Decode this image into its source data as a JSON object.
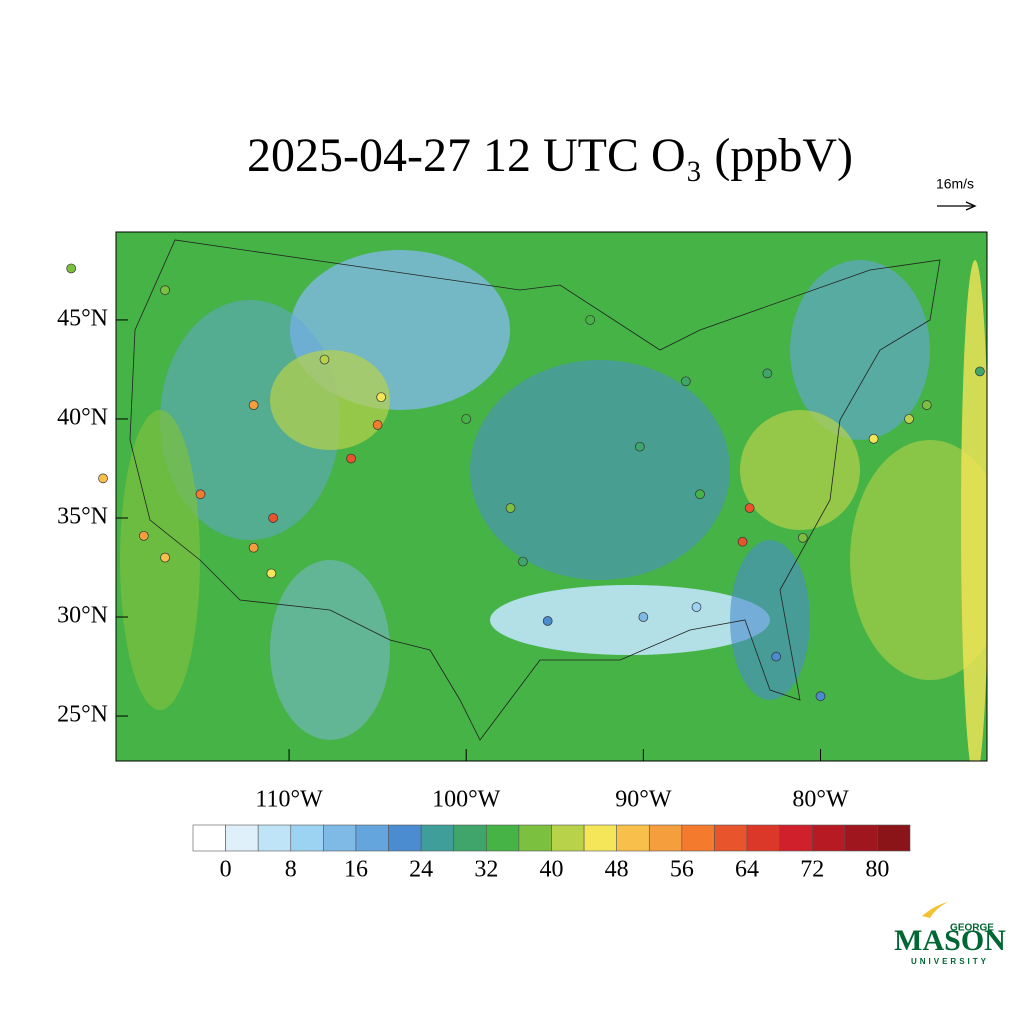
{
  "chart_data": {
    "type": "map",
    "title": "2025-04-27 12 UTC O₃ (ppbV)",
    "vector_key_label": "16m/s",
    "xlim": [
      -119.77,
      -70.6
    ],
    "ylim": [
      22.73,
      49.44
    ],
    "xticks": [
      {
        "value": -110,
        "label": "110°W"
      },
      {
        "value": -100,
        "label": "100°W"
      },
      {
        "value": -90,
        "label": "90°W"
      },
      {
        "value": -80,
        "label": "80°W"
      }
    ],
    "yticks": [
      {
        "value": 45,
        "label": "45°N"
      },
      {
        "value": 40,
        "label": "40°N"
      },
      {
        "value": 35,
        "label": "35°N"
      },
      {
        "value": 30,
        "label": "30°N"
      },
      {
        "value": 25,
        "label": "25°N"
      }
    ],
    "stations": {
      "lon": [
        -122.3,
        -117,
        -112,
        -105,
        -106.5,
        -118.2,
        -117,
        -115,
        -112,
        -111,
        -110.9,
        -120.5,
        -96.8,
        -95.4,
        -90,
        -87,
        -84.4,
        -84,
        -81,
        -77,
        -75,
        -74,
        -71,
        -87.6,
        -83,
        -93,
        -100,
        -97.5,
        -80,
        -82.5,
        -90.2,
        -86.8,
        -104.8,
        -108
      ],
      "lat": [
        47.6,
        46.5,
        40.7,
        39.7,
        38,
        34.1,
        33,
        36.2,
        33.5,
        32.2,
        35,
        37,
        32.8,
        29.8,
        30,
        30.5,
        33.8,
        35.5,
        34,
        39,
        40,
        40.7,
        42.4,
        41.9,
        42.3,
        45,
        40,
        35.5,
        26,
        28,
        38.6,
        36.2,
        41.1,
        43
      ],
      "values": [
        38,
        36,
        52,
        56,
        60,
        52,
        50,
        56,
        54,
        46,
        60,
        48,
        28,
        20,
        14,
        10,
        62,
        60,
        36,
        44,
        42,
        38,
        30,
        30,
        28,
        34,
        32,
        36,
        22,
        20,
        30,
        32,
        44,
        40
      ]
    },
    "colorbar": {
      "levels": [
        0,
        4,
        8,
        12,
        16,
        20,
        24,
        28,
        32,
        36,
        40,
        44,
        48,
        52,
        56,
        60,
        64,
        68,
        72,
        76,
        80
      ],
      "ticks": [
        0,
        8,
        16,
        24,
        32,
        40,
        48,
        56,
        64,
        72,
        80
      ],
      "colors": [
        "#ffffff",
        "#dff0fa",
        "#bfe3f7",
        "#9dd3f2",
        "#7fb9e6",
        "#64a5dd",
        "#4a8ccf",
        "#3f9e9a",
        "#3fa56a",
        "#45b345",
        "#7cc040",
        "#b8d24a",
        "#f5e558",
        "#f8c04a",
        "#f59e3e",
        "#f47a2d",
        "#e8552c",
        "#dc382a",
        "#d0202b",
        "#b81a23",
        "#a0161e",
        "#8a1418"
      ]
    }
  },
  "logo": {
    "top": "GEORGE",
    "main": "MASON",
    "bottom": "UNIVERSITY"
  }
}
